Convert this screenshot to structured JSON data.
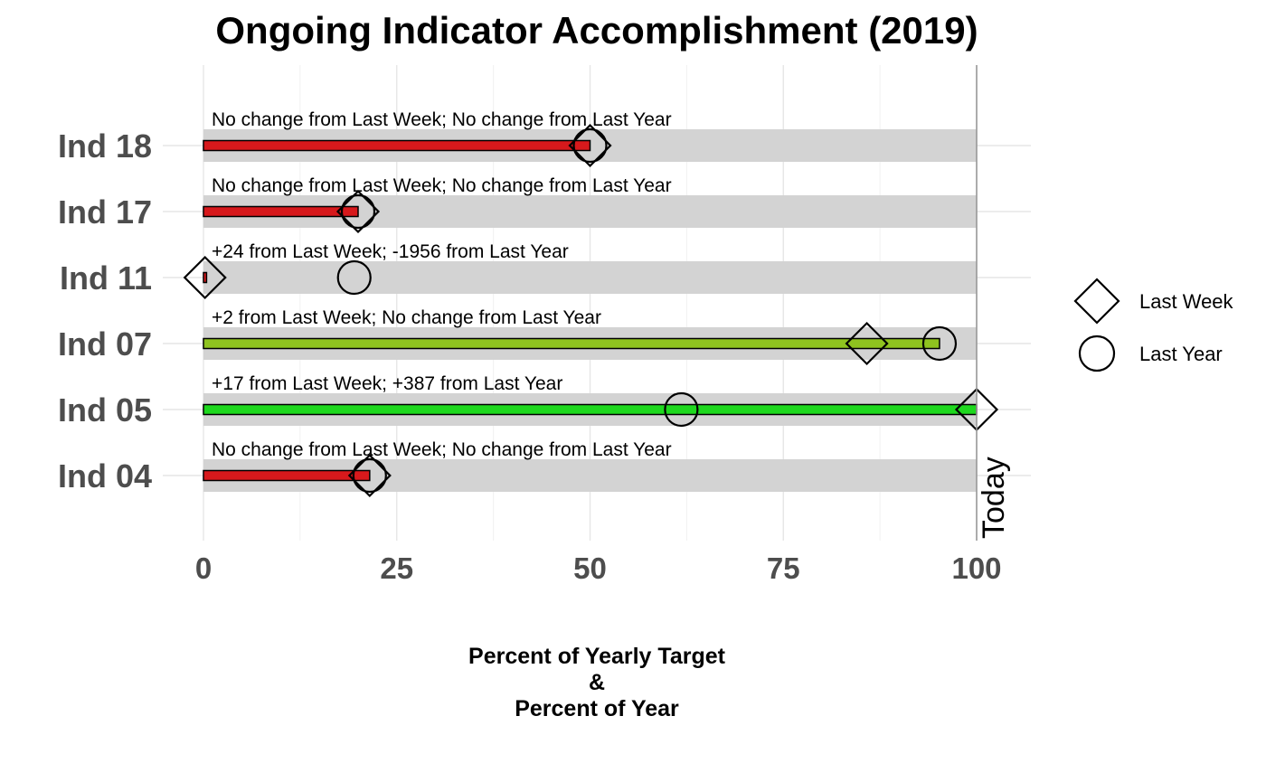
{
  "chart_data": {
    "type": "bar",
    "title": "Ongoing Indicator Accomplishment (2019)",
    "xlabel_lines": [
      "Percent of Yearly Target",
      "&",
      "Percent of Year"
    ],
    "xlim": [
      0,
      100
    ],
    "x_ticks": [
      "0",
      "25",
      "50",
      "75",
      "100"
    ],
    "x_tick_values": [
      0,
      25,
      50,
      75,
      100
    ],
    "today_value": 100,
    "today_label": "Today",
    "indicators": [
      {
        "label": "Ind 18",
        "value": 50,
        "last_week": 50,
        "last_year": 50,
        "color": "#d7191c",
        "annotation": "No change from Last Week; No change from Last Year"
      },
      {
        "label": "Ind 17",
        "value": 20,
        "last_week": 20,
        "last_year": 20,
        "color": "#d7191c",
        "annotation": "No change from Last Week; No change from Last Year"
      },
      {
        "label": "Ind 11",
        "value": 0.4,
        "last_week": 0.2,
        "last_year": 19.5,
        "color": "#d7191c",
        "annotation": "+24 from Last Week; -1956 from Last Year"
      },
      {
        "label": "Ind 07",
        "value": 95.2,
        "last_week": 85.8,
        "last_year": 95.2,
        "color": "#8fc31f",
        "annotation": "+2 from Last Week; No change from Last Year"
      },
      {
        "label": "Ind 05",
        "value": 100,
        "last_week": 100,
        "last_year": 61.8,
        "color": "#1ed81e",
        "annotation": "+17 from Last Week; +387 from Last Year"
      },
      {
        "label": "Ind 04",
        "value": 21.5,
        "last_week": 21.5,
        "last_year": 21.5,
        "color": "#d7191c",
        "annotation": "No change from Last Week; No change from Last Year"
      }
    ],
    "legend": {
      "placement": "right",
      "entries": [
        {
          "name": "Last Week",
          "shape": "diamond"
        },
        {
          "name": "Last Year",
          "shape": "circle"
        }
      ]
    },
    "background_bar_color": "#d3d3d3",
    "grid": true
  }
}
